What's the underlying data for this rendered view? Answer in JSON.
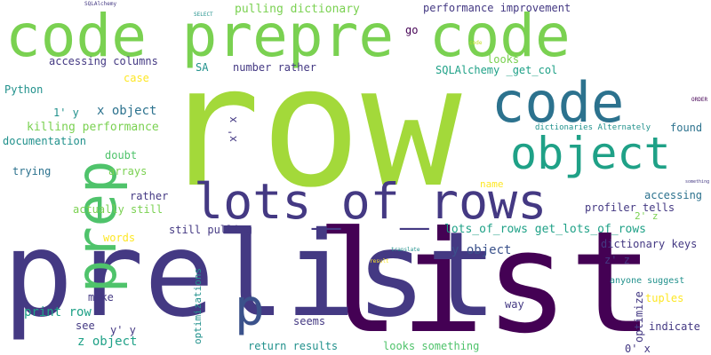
{
  "palette": {
    "lime": "#a3d93a",
    "green": "#7ad151",
    "emerald": "#4fc36b",
    "teal": "#1fa187",
    "cyan": "#21918c",
    "blue": "#2c728e",
    "slate": "#3b528b",
    "indigo": "#443983",
    "purple": "#481f70",
    "deep": "#440154",
    "yellow": "#fde725",
    "chartreuse": "#c2df23"
  },
  "words": [
    {
      "text": "row",
      "color": "lime"
    },
    {
      "text": "code prepre code",
      "color": "green"
    },
    {
      "text": "list",
      "color": "deep"
    },
    {
      "text": "prelist",
      "color": "indigo"
    },
    {
      "text": "prep",
      "color": "emerald"
    },
    {
      "text": "lots_of_rows",
      "color": "indigo"
    },
    {
      "text": "object",
      "color": "teal"
    },
    {
      "text": "code",
      "color": "blue"
    },
    {
      "text": "p",
      "color": "slate"
    },
    {
      "text": "pulling dictionary",
      "color": "green"
    },
    {
      "text": "performance improvement",
      "color": "indigo"
    },
    {
      "text": "go",
      "color": "deep"
    },
    {
      "text": "accessing columns",
      "color": "indigo"
    },
    {
      "text": "SQLAlchemy _get_col",
      "color": "teal"
    },
    {
      "text": "number rather",
      "color": "indigo"
    },
    {
      "text": "SA",
      "color": "cyan"
    },
    {
      "text": "looks",
      "color": "green"
    },
    {
      "text": "case",
      "color": "yellow"
    },
    {
      "text": "Python",
      "color": "cyan"
    },
    {
      "text": "x object",
      "color": "blue"
    },
    {
      "text": "1' y",
      "color": "cyan"
    },
    {
      "text": "killing performance",
      "color": "green"
    },
    {
      "text": "documentation",
      "color": "cyan"
    },
    {
      "text": "x' x",
      "color": "indigo"
    },
    {
      "text": "found",
      "color": "blue"
    },
    {
      "text": "dictionaries Alternately",
      "color": "cyan"
    },
    {
      "text": "doubt",
      "color": "emerald"
    },
    {
      "text": "trying",
      "color": "blue"
    },
    {
      "text": "arrays",
      "color": "green"
    },
    {
      "text": "name",
      "color": "yellow"
    },
    {
      "text": "accessing",
      "color": "blue"
    },
    {
      "text": "rather",
      "color": "indigo"
    },
    {
      "text": "profiler tells",
      "color": "indigo"
    },
    {
      "text": "actually still",
      "color": "green"
    },
    {
      "text": "2' z",
      "color": "green"
    },
    {
      "text": "lots_of_rows get_lots_of_rows",
      "color": "teal"
    },
    {
      "text": "still pulling",
      "color": "indigo"
    },
    {
      "text": "words",
      "color": "yellow"
    },
    {
      "text": "dictionary keys",
      "color": "indigo"
    },
    {
      "text": "y object",
      "color": "slate"
    },
    {
      "text": "z' z",
      "color": "indigo"
    },
    {
      "text": "make",
      "color": "indigo"
    },
    {
      "text": "optimizations",
      "color": "cyan"
    },
    {
      "text": "anyone suggest",
      "color": "cyan"
    },
    {
      "text": "tuples",
      "color": "yellow"
    },
    {
      "text": "optimize",
      "color": "indigo"
    },
    {
      "text": "print row",
      "color": "teal"
    },
    {
      "text": "way",
      "color": "indigo"
    },
    {
      "text": "indicate",
      "color": "indigo"
    },
    {
      "text": "see",
      "color": "indigo"
    },
    {
      "text": "y' y",
      "color": "indigo"
    },
    {
      "text": "seems",
      "color": "indigo"
    },
    {
      "text": "z object",
      "color": "teal"
    },
    {
      "text": "return results",
      "color": "cyan"
    },
    {
      "text": "looks something",
      "color": "emerald"
    },
    {
      "text": "0' x",
      "color": "indigo"
    },
    {
      "text": "SQLAlchemy",
      "color": "indigo"
    },
    {
      "text": "SELECT",
      "color": "cyan"
    },
    {
      "text": "code",
      "color": "chartreuse"
    },
    {
      "text": "something",
      "color": "indigo"
    },
    {
      "text": "ORDER",
      "color": "deep"
    },
    {
      "text": "translate",
      "color": "cyan"
    },
    {
      "text": "result",
      "color": "yellow"
    }
  ]
}
